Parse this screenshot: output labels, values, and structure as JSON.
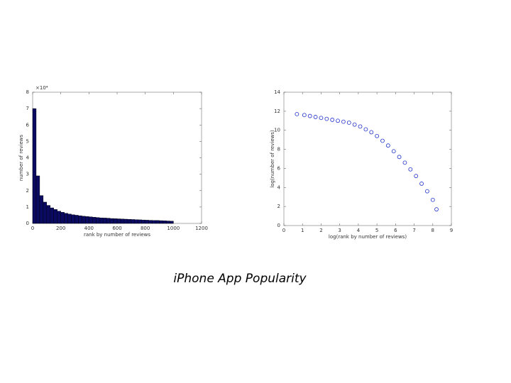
{
  "caption": "iPhone App Popularity",
  "chart_data": [
    {
      "type": "histogram",
      "xlabel": "rank by number of reviews",
      "ylabel": "number of reviews",
      "y_multiplier": "×10⁴",
      "bins": [
        0,
        25,
        50,
        75,
        100,
        125,
        150,
        175,
        200,
        225,
        250,
        275,
        300,
        325,
        350,
        375,
        400,
        425,
        450,
        475,
        500,
        525,
        550,
        575,
        600,
        625,
        650,
        675,
        700,
        725,
        750,
        775,
        800,
        825,
        850,
        875,
        900,
        925,
        950,
        975,
        1000
      ],
      "values": [
        7.0,
        2.9,
        1.7,
        1.3,
        1.1,
        0.95,
        0.85,
        0.75,
        0.68,
        0.62,
        0.57,
        0.53,
        0.5,
        0.47,
        0.44,
        0.42,
        0.4,
        0.38,
        0.36,
        0.34,
        0.33,
        0.32,
        0.3,
        0.29,
        0.28,
        0.27,
        0.26,
        0.25,
        0.24,
        0.23,
        0.22,
        0.21,
        0.2,
        0.19,
        0.18,
        0.18,
        0.17,
        0.16,
        0.15,
        0.14
      ],
      "color": "#0a0a60",
      "xlim": [
        0,
        1200
      ],
      "xticks": [
        0,
        200,
        400,
        600,
        800,
        1000,
        1200
      ],
      "ylim": [
        0,
        8
      ],
      "yticks": [
        0,
        1,
        2,
        3,
        4,
        5,
        6,
        7,
        8
      ]
    },
    {
      "type": "scatter",
      "xlabel": "log(rank by number of reviews)",
      "ylabel": "log(number of reviews)",
      "x": [
        0.7,
        1.1,
        1.4,
        1.7,
        2.0,
        2.3,
        2.6,
        2.9,
        3.2,
        3.5,
        3.8,
        4.1,
        4.4,
        4.7,
        5.0,
        5.3,
        5.6,
        5.9,
        6.2,
        6.5,
        6.8,
        7.1,
        7.4,
        7.7,
        8.0,
        8.2
      ],
      "values": [
        11.7,
        11.6,
        11.5,
        11.4,
        11.3,
        11.2,
        11.1,
        11.0,
        10.9,
        10.8,
        10.6,
        10.4,
        10.1,
        9.8,
        9.4,
        8.9,
        8.4,
        7.8,
        7.2,
        6.6,
        5.9,
        5.2,
        4.4,
        3.6,
        2.7,
        1.7
      ],
      "color": "#2233cc",
      "xlim": [
        0,
        9
      ],
      "xticks": [
        0,
        1,
        2,
        3,
        4,
        5,
        6,
        7,
        8,
        9
      ],
      "ylim": [
        0,
        14
      ],
      "yticks": [
        0,
        2,
        4,
        6,
        8,
        10,
        12,
        14
      ]
    }
  ]
}
